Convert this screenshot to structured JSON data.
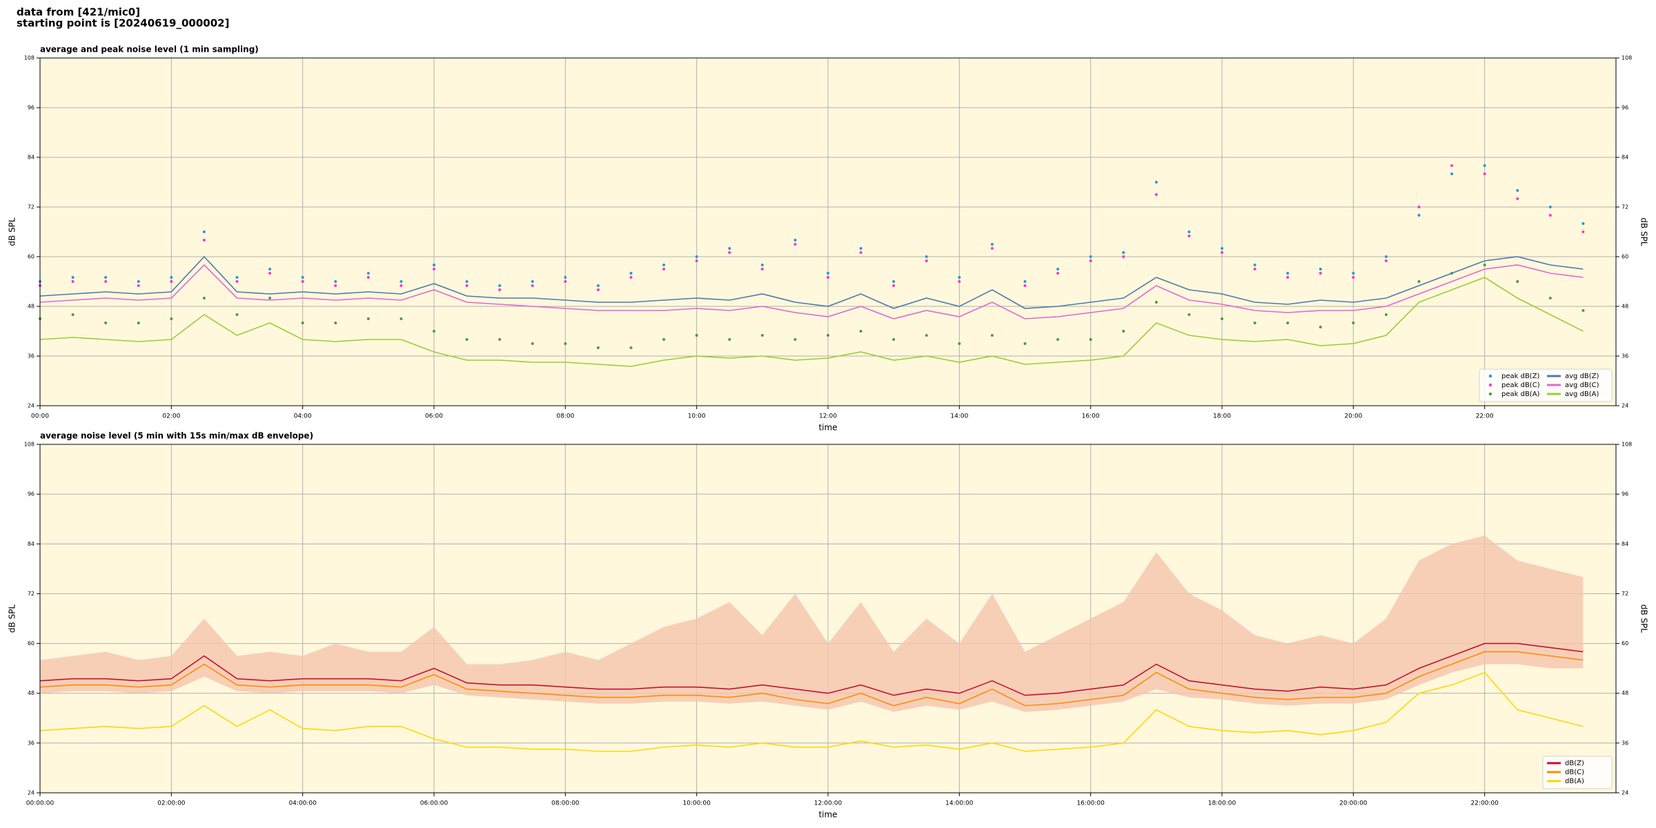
{
  "header": {
    "lines": [
      "data from [421/mic0]",
      "starting point is [20240619_000002]"
    ]
  },
  "chart_data": [
    {
      "type": "line",
      "title": "average and peak noise level (1 min sampling)",
      "x_label": "time",
      "y_label": "dB SPL",
      "xlim": [
        0,
        24
      ],
      "ylim": [
        24,
        108
      ],
      "grid": true,
      "background": "#fff8dc",
      "legend": "lower right",
      "legend_columns": 2,
      "xticks": [
        {
          "value": 0,
          "label": "00:00"
        },
        {
          "value": 2,
          "label": "02:00"
        },
        {
          "value": 4,
          "label": "04:00"
        },
        {
          "value": 6,
          "label": "06:00"
        },
        {
          "value": 8,
          "label": "08:00"
        },
        {
          "value": 10,
          "label": "10:00"
        },
        {
          "value": 12,
          "label": "12:00"
        },
        {
          "value": 14,
          "label": "14:00"
        },
        {
          "value": 16,
          "label": "16:00"
        },
        {
          "value": 18,
          "label": "18:00"
        },
        {
          "value": 20,
          "label": "20:00"
        },
        {
          "value": 22,
          "label": "22:00"
        }
      ],
      "yticks": [
        24,
        36,
        48,
        60,
        72,
        84,
        96,
        108
      ],
      "x": [
        0,
        0.5,
        1,
        1.5,
        2,
        2.5,
        3,
        3.5,
        4,
        4.5,
        5,
        5.5,
        6,
        6.5,
        7,
        7.5,
        8,
        8.5,
        9,
        9.5,
        10,
        10.5,
        11,
        11.5,
        12,
        12.5,
        13,
        13.5,
        14,
        14.5,
        15,
        15.5,
        16,
        16.5,
        17,
        17.5,
        18,
        18.5,
        19,
        19.5,
        20,
        20.5,
        21,
        21.5,
        22,
        22.5,
        23,
        23.5
      ],
      "series": [
        {
          "name": "peak dB(Z)",
          "type": "scatter",
          "color": "#1f9be0",
          "values": [
            54,
            55,
            55,
            54,
            55,
            66,
            55,
            57,
            55,
            54,
            56,
            54,
            58,
            54,
            53,
            54,
            55,
            53,
            56,
            58,
            60,
            62,
            58,
            64,
            56,
            62,
            54,
            60,
            55,
            63,
            54,
            57,
            60,
            61,
            78,
            66,
            62,
            58,
            56,
            57,
            56,
            60,
            70,
            80,
            82,
            76,
            72,
            68
          ]
        },
        {
          "name": "peak dB(C)",
          "type": "scatter",
          "color": "#ff33cc",
          "values": [
            53,
            54,
            54,
            53,
            54,
            64,
            54,
            56,
            54,
            53,
            55,
            53,
            57,
            53,
            52,
            53,
            54,
            52,
            55,
            57,
            59,
            61,
            57,
            63,
            55,
            61,
            53,
            59,
            54,
            62,
            53,
            56,
            59,
            60,
            75,
            65,
            61,
            57,
            55,
            56,
            55,
            59,
            72,
            82,
            80,
            74,
            70,
            66
          ]
        },
        {
          "name": "peak dB(A)",
          "type": "scatter",
          "color": "#4a9a4a",
          "values": [
            45,
            46,
            44,
            44,
            45,
            50,
            46,
            50,
            44,
            44,
            45,
            45,
            42,
            40,
            40,
            39,
            39,
            38,
            38,
            40,
            41,
            40,
            41,
            40,
            41,
            42,
            40,
            41,
            39,
            41,
            39,
            40,
            40,
            42,
            49,
            46,
            45,
            44,
            44,
            43,
            44,
            46,
            54,
            56,
            58,
            54,
            50,
            47
          ]
        },
        {
          "name": "avg dB(Z)",
          "type": "line",
          "color": "#4a7ab0",
          "values": [
            50.5,
            51,
            51.5,
            51,
            51.5,
            60,
            51.5,
            51,
            51.5,
            51,
            51.5,
            51,
            53.5,
            50.5,
            50,
            50,
            49.5,
            49,
            49,
            49.5,
            50,
            49.5,
            51,
            49,
            48,
            51,
            47.5,
            50,
            48,
            52,
            47.5,
            48,
            49,
            50,
            55,
            52,
            51,
            49,
            48.5,
            49.5,
            49,
            50,
            53,
            56,
            59,
            60,
            58,
            57
          ]
        },
        {
          "name": "avg dB(C)",
          "type": "line",
          "color": "#e066d6",
          "values": [
            49,
            49.5,
            50,
            49.5,
            50,
            58,
            50,
            49.5,
            50,
            49.5,
            50,
            49.5,
            52,
            49,
            48.5,
            48,
            47.5,
            47,
            47,
            47,
            47.5,
            47,
            48,
            46.5,
            45.5,
            48,
            45,
            47,
            45.5,
            49,
            45,
            45.5,
            46.5,
            47.5,
            53,
            49.5,
            48.5,
            47,
            46.5,
            47,
            47,
            48,
            51,
            54,
            57,
            58,
            56,
            55
          ]
        },
        {
          "name": "avg dB(A)",
          "type": "line",
          "color": "#9acd32",
          "values": [
            40,
            40.5,
            40,
            39.5,
            40,
            46,
            41,
            44,
            40,
            39.5,
            40,
            40,
            37,
            35,
            35,
            34.5,
            34.5,
            34,
            33.5,
            35,
            36,
            35.5,
            36,
            35,
            35.5,
            37,
            35,
            36,
            34.5,
            36,
            34,
            34.5,
            35,
            36,
            44,
            41,
            40,
            39.5,
            40,
            38.5,
            39,
            41,
            49,
            52,
            55,
            50,
            46,
            42
          ]
        }
      ]
    },
    {
      "type": "line",
      "title": "average noise level (5 min with 15s min/max dB envelope)",
      "x_label": "time",
      "y_label": "dB SPL",
      "xlim": [
        0,
        24
      ],
      "ylim": [
        24,
        108
      ],
      "grid": true,
      "background": "#fff8dc",
      "legend": "lower right",
      "legend_columns": 1,
      "xticks": [
        {
          "value": 0,
          "label": "00:00:00"
        },
        {
          "value": 2,
          "label": "02:00:00"
        },
        {
          "value": 4,
          "label": "04:00:00"
        },
        {
          "value": 6,
          "label": "06:00:00"
        },
        {
          "value": 8,
          "label": "08:00:00"
        },
        {
          "value": 10,
          "label": "10:00:00"
        },
        {
          "value": 12,
          "label": "12:00:00"
        },
        {
          "value": 14,
          "label": "14:00:00"
        },
        {
          "value": 16,
          "label": "16:00:00"
        },
        {
          "value": 18,
          "label": "18:00:00"
        },
        {
          "value": 20,
          "label": "20:00:00"
        },
        {
          "value": 22,
          "label": "22:00:00"
        }
      ],
      "yticks": [
        24,
        36,
        48,
        60,
        72,
        84,
        96,
        108
      ],
      "x": [
        0,
        0.5,
        1,
        1.5,
        2,
        2.5,
        3,
        3.5,
        4,
        4.5,
        5,
        5.5,
        6,
        6.5,
        7,
        7.5,
        8,
        8.5,
        9,
        9.5,
        10,
        10.5,
        11,
        11.5,
        12,
        12.5,
        13,
        13.5,
        14,
        14.5,
        15,
        15.5,
        16,
        16.5,
        17,
        17.5,
        18,
        18.5,
        19,
        19.5,
        20,
        20.5,
        21,
        21.5,
        22,
        22.5,
        23,
        23.5
      ],
      "envelope": {
        "color": "#f5c4ae",
        "min": [
          48,
          48.5,
          48.5,
          48,
          48.5,
          52,
          48.5,
          48,
          48.5,
          48.5,
          48.5,
          48,
          50,
          47.5,
          47,
          46.5,
          46,
          45.5,
          45.5,
          46,
          46,
          45.5,
          46,
          45,
          44,
          46,
          43.5,
          45,
          44,
          46,
          43.5,
          44,
          45,
          46,
          49,
          47,
          46.5,
          45.5,
          45,
          45.5,
          45.5,
          46.5,
          50,
          53,
          55,
          55,
          54,
          54
        ],
        "max": [
          56,
          57,
          58,
          56,
          57,
          66,
          57,
          58,
          57,
          60,
          58,
          58,
          64,
          55,
          55,
          56,
          58,
          56,
          60,
          64,
          66,
          70,
          62,
          72,
          60,
          70,
          58,
          66,
          60,
          72,
          58,
          62,
          66,
          70,
          82,
          72,
          68,
          62,
          60,
          62,
          60,
          66,
          80,
          84,
          86,
          80,
          78,
          76
        ]
      },
      "series": [
        {
          "name": "dB(Z)",
          "type": "line",
          "color": "#c8102e",
          "values": [
            51,
            51.5,
            51.5,
            51,
            51.5,
            57,
            51.5,
            51,
            51.5,
            51.5,
            51.5,
            51,
            54,
            50.5,
            50,
            50,
            49.5,
            49,
            49,
            49.5,
            49.5,
            49,
            50,
            49,
            48,
            50,
            47.5,
            49,
            48,
            51,
            47.5,
            48,
            49,
            50,
            55,
            51,
            50,
            49,
            48.5,
            49.5,
            49,
            50,
            54,
            57,
            60,
            60,
            59,
            58
          ]
        },
        {
          "name": "dB(C)",
          "type": "line",
          "color": "#ff8c00",
          "values": [
            49.5,
            50,
            50,
            49.5,
            50,
            55,
            50,
            49.5,
            50,
            50,
            50,
            49.5,
            52.5,
            49,
            48.5,
            48,
            47.5,
            47,
            47,
            47.5,
            47.5,
            47,
            48,
            46.5,
            45.5,
            48,
            45,
            47,
            45.5,
            49,
            45,
            45.5,
            46.5,
            47.5,
            53,
            49,
            48,
            47,
            46.5,
            47,
            47,
            48,
            52,
            55,
            58,
            58,
            57,
            56
          ]
        },
        {
          "name": "dB(A)",
          "type": "line",
          "color": "#ffd700",
          "values": [
            39,
            39.5,
            40,
            39.5,
            40,
            45,
            40,
            44,
            39.5,
            39,
            40,
            40,
            37,
            35,
            35,
            34.5,
            34.5,
            34,
            34,
            35,
            35.5,
            35,
            36,
            35,
            35,
            36.5,
            35,
            35.5,
            34.5,
            36,
            34,
            34.5,
            35,
            36,
            44,
            40,
            39,
            38.5,
            39,
            38,
            39,
            41,
            48,
            50,
            53,
            44,
            42,
            40
          ]
        }
      ]
    }
  ]
}
